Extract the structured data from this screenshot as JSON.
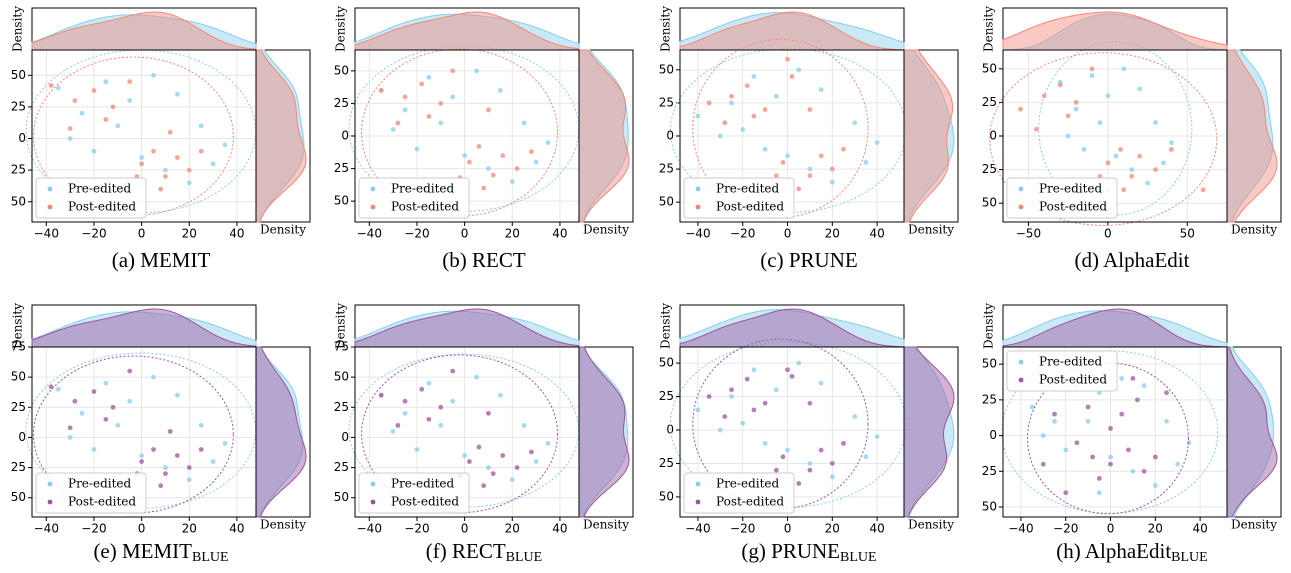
{
  "chart_data": [
    {
      "type": "scatter",
      "title": "(a) MEMIT",
      "top_ylabel": "Density",
      "right_xlabel": "Density",
      "legend": "lower left",
      "xlim": [
        -46,
        48
      ],
      "ylim": [
        -66,
        70
      ],
      "xticks": [
        {
          "value": -40,
          "label": "−40"
        },
        {
          "value": -20,
          "label": "−20"
        },
        0,
        20,
        40
      ],
      "yticks": [
        {
          "value": -50,
          "label": "50"
        },
        {
          "value": -25,
          "label": "25"
        },
        0,
        25,
        50
      ],
      "series": [
        {
          "name": "Pre-edited",
          "color": "#87ceeb",
          "x": [
            -35,
            -25,
            -15,
            -5,
            5,
            15,
            25,
            35,
            -30,
            -10,
            0,
            10,
            20,
            -5,
            30,
            -20
          ],
          "y": [
            40,
            20,
            45,
            30,
            50,
            35,
            10,
            -5,
            0,
            10,
            -15,
            -25,
            -35,
            -40,
            -20,
            -10
          ]
        },
        {
          "name": "Post-edited",
          "color": "#f4877a",
          "x": [
            -38,
            -28,
            -20,
            -12,
            -30,
            -5,
            0,
            5,
            10,
            15,
            20,
            8,
            -2,
            25,
            12,
            -15
          ],
          "y": [
            42,
            30,
            38,
            25,
            8,
            45,
            -20,
            -10,
            -30,
            -15,
            -25,
            -40,
            -30,
            -10,
            5,
            15
          ]
        }
      ]
    },
    {
      "type": "scatter",
      "title": "(b) RECT",
      "top_ylabel": "Density",
      "right_xlabel": "Density",
      "legend": "lower left",
      "xlim": [
        -46,
        48
      ],
      "ylim": [
        -66,
        66
      ],
      "xticks": [
        {
          "value": -40,
          "label": "−40"
        },
        {
          "value": -20,
          "label": "−20"
        },
        0,
        20,
        40
      ],
      "yticks": [
        {
          "value": -50,
          "label": "50"
        },
        {
          "value": -25,
          "label": "25"
        },
        0,
        25,
        50
      ],
      "series": [
        {
          "name": "Pre-edited",
          "color": "#87ceeb",
          "x": [
            -35,
            -25,
            -15,
            -5,
            5,
            15,
            25,
            35,
            -30,
            -10,
            0,
            10,
            20,
            -5,
            30,
            -20
          ],
          "y": [
            35,
            20,
            45,
            30,
            50,
            35,
            10,
            -5,
            5,
            10,
            -15,
            -25,
            -35,
            -40,
            -20,
            -10
          ]
        },
        {
          "name": "Post-edited",
          "color": "#f4877a",
          "x": [
            -35,
            -25,
            -18,
            -10,
            -28,
            -5,
            2,
            6,
            12,
            16,
            22,
            8,
            -2,
            28,
            10,
            -15
          ],
          "y": [
            35,
            30,
            40,
            25,
            10,
            50,
            -20,
            -8,
            -30,
            -15,
            -25,
            -40,
            -32,
            -12,
            20,
            15
          ]
        }
      ]
    },
    {
      "type": "scatter",
      "title": "(c) PRUNE",
      "top_ylabel": "Density",
      "right_xlabel": "Density",
      "legend": "lower left",
      "xlim": [
        -48,
        52
      ],
      "ylim": [
        -65,
        65
      ],
      "xticks": [
        {
          "value": -40,
          "label": "−40"
        },
        {
          "value": -20,
          "label": "−20"
        },
        0,
        20,
        40
      ],
      "yticks": [
        {
          "value": -50,
          "label": "50"
        },
        {
          "value": -25,
          "label": "25"
        },
        0,
        25,
        50
      ],
      "series": [
        {
          "name": "Pre-edited",
          "color": "#87ceeb",
          "x": [
            -40,
            -25,
            -15,
            -5,
            5,
            15,
            30,
            40,
            -30,
            -10,
            0,
            10,
            20,
            -5,
            35,
            -20
          ],
          "y": [
            15,
            25,
            45,
            30,
            50,
            35,
            10,
            -5,
            0,
            -10,
            -15,
            -25,
            -35,
            -40,
            -20,
            5
          ]
        },
        {
          "name": "Post-edited",
          "color": "#f4877a",
          "x": [
            -35,
            -25,
            -18,
            -10,
            -28,
            0,
            2,
            -2,
            10,
            15,
            20,
            5,
            -5,
            25,
            10,
            -15
          ],
          "y": [
            25,
            30,
            38,
            20,
            10,
            58,
            45,
            -20,
            -30,
            -15,
            -25,
            -40,
            -30,
            -10,
            20,
            15
          ]
        }
      ]
    },
    {
      "type": "scatter",
      "title": "(d) AlphaEdit",
      "top_ylabel": "Density",
      "right_xlabel": "Density",
      "legend": "lower left",
      "xlim": [
        -66,
        75
      ],
      "ylim": [
        -64,
        64
      ],
      "xticks": [
        {
          "value": -50,
          "label": "−50"
        },
        0,
        50
      ],
      "yticks": [
        {
          "value": -50,
          "label": "50"
        },
        {
          "value": -25,
          "label": "25"
        },
        0,
        25,
        50
      ],
      "series": [
        {
          "name": "Pre-edited",
          "color": "#87ceeb",
          "x": [
            -30,
            -20,
            -10,
            0,
            10,
            20,
            30,
            40,
            -25,
            -5,
            5,
            15,
            25,
            0,
            35,
            -15
          ],
          "y": [
            40,
            20,
            45,
            30,
            50,
            35,
            10,
            -5,
            0,
            10,
            -15,
            -25,
            -35,
            -40,
            -20,
            -10
          ]
        },
        {
          "name": "Post-edited",
          "color": "#f4877a",
          "x": [
            -55,
            -40,
            -30,
            -20,
            -45,
            -10,
            0,
            8,
            15,
            20,
            30,
            10,
            -5,
            40,
            60,
            -25
          ],
          "y": [
            20,
            30,
            38,
            25,
            5,
            50,
            -20,
            -10,
            -30,
            -15,
            -25,
            -40,
            -30,
            -10,
            -40,
            15
          ]
        }
      ]
    },
    {
      "type": "scatter",
      "title": "(e) MEMIT",
      "title_subscript": "BLUE",
      "top_ylabel": "Density",
      "right_xlabel": "Density",
      "legend": "lower left",
      "xlim": [
        -46,
        48
      ],
      "ylim": [
        -66,
        75
      ],
      "xticks": [
        {
          "value": -40,
          "label": "−40"
        },
        {
          "value": -20,
          "label": "−20"
        },
        0,
        20,
        40
      ],
      "yticks": [
        {
          "value": -50,
          "label": "50"
        },
        {
          "value": -25,
          "label": "25"
        },
        0,
        25,
        50,
        75
      ],
      "series": [
        {
          "name": "Pre-edited",
          "color": "#87ceeb",
          "x": [
            -35,
            -25,
            -15,
            -5,
            5,
            15,
            25,
            35,
            -30,
            -10,
            0,
            10,
            20,
            -5,
            30,
            -20
          ],
          "y": [
            40,
            20,
            45,
            30,
            50,
            35,
            10,
            -5,
            0,
            10,
            -15,
            -25,
            -35,
            -40,
            -20,
            -10
          ]
        },
        {
          "name": "Post-edited",
          "color": "#9b559e",
          "x": [
            -38,
            -28,
            -20,
            -12,
            -30,
            -5,
            0,
            5,
            10,
            15,
            20,
            8,
            -2,
            25,
            12,
            -15
          ],
          "y": [
            42,
            30,
            38,
            25,
            8,
            55,
            -20,
            -10,
            -30,
            -15,
            -25,
            -40,
            -30,
            -10,
            5,
            15
          ]
        }
      ]
    },
    {
      "type": "scatter",
      "title": "(f) RECT",
      "title_subscript": "BLUE",
      "top_ylabel": "Density",
      "right_xlabel": "Density",
      "legend": "lower left",
      "xlim": [
        -46,
        48
      ],
      "ylim": [
        -66,
        75
      ],
      "xticks": [
        {
          "value": -40,
          "label": "−40"
        },
        {
          "value": -20,
          "label": "−20"
        },
        0,
        20,
        40
      ],
      "yticks": [
        {
          "value": -50,
          "label": "50"
        },
        {
          "value": -25,
          "label": "25"
        },
        0,
        25,
        50,
        75
      ],
      "series": [
        {
          "name": "Pre-edited",
          "color": "#87ceeb",
          "x": [
            -35,
            -25,
            -15,
            -5,
            5,
            15,
            25,
            35,
            -30,
            -10,
            0,
            10,
            20,
            -5,
            30,
            -20
          ],
          "y": [
            35,
            20,
            45,
            30,
            50,
            35,
            10,
            -5,
            5,
            10,
            -15,
            -25,
            -35,
            -40,
            -20,
            -10
          ]
        },
        {
          "name": "Post-edited",
          "color": "#9b559e",
          "x": [
            -35,
            -25,
            -18,
            -10,
            -28,
            -5,
            2,
            6,
            12,
            16,
            22,
            8,
            -2,
            28,
            10,
            -15
          ],
          "y": [
            35,
            30,
            40,
            25,
            10,
            55,
            -20,
            -8,
            -30,
            -15,
            -25,
            -40,
            -32,
            -12,
            20,
            15
          ]
        }
      ]
    },
    {
      "type": "scatter",
      "title": "(g) PRUNE",
      "title_subscript": "BLUE",
      "top_ylabel": "Density",
      "right_xlabel": "Density",
      "legend": "lower left",
      "xlim": [
        -48,
        52
      ],
      "ylim": [
        -65,
        62
      ],
      "xticks": [
        {
          "value": -40,
          "label": "−40"
        },
        {
          "value": -20,
          "label": "−20"
        },
        0,
        20,
        40
      ],
      "yticks": [
        {
          "value": -50,
          "label": "50"
        },
        {
          "value": -25,
          "label": "25"
        },
        0,
        25,
        50
      ],
      "series": [
        {
          "name": "Pre-edited",
          "color": "#87ceeb",
          "x": [
            -40,
            -25,
            -15,
            -5,
            5,
            15,
            30,
            40,
            -30,
            -10,
            0,
            10,
            20,
            -5,
            35,
            -20
          ],
          "y": [
            15,
            25,
            45,
            30,
            50,
            35,
            10,
            -5,
            0,
            -10,
            -15,
            -25,
            -35,
            -40,
            -20,
            5
          ]
        },
        {
          "name": "Post-edited",
          "color": "#9b559e",
          "x": [
            -35,
            -25,
            -18,
            -10,
            -28,
            0,
            2,
            -2,
            10,
            15,
            20,
            5,
            -5,
            25,
            10,
            -15
          ],
          "y": [
            25,
            30,
            38,
            20,
            10,
            45,
            40,
            -20,
            -30,
            -15,
            -25,
            -40,
            -30,
            -10,
            20,
            15
          ]
        }
      ]
    },
    {
      "type": "scatter",
      "title": "(h) AlphaEdit",
      "title_subscript": "BLUE",
      "top_ylabel": "Density",
      "right_xlabel": "Density",
      "legend": "upper left",
      "xlim": [
        -48,
        52
      ],
      "ylim": [
        -57,
        62
      ],
      "xticks": [
        {
          "value": -40,
          "label": "−40"
        },
        {
          "value": -20,
          "label": "−20"
        },
        0,
        20,
        40
      ],
      "yticks": [
        {
          "value": -50,
          "label": "50"
        },
        {
          "value": -25,
          "label": "25"
        },
        0,
        25,
        50
      ],
      "series": [
        {
          "name": "Pre-edited",
          "color": "#87ceeb",
          "x": [
            -35,
            -25,
            -15,
            -5,
            5,
            15,
            25,
            35,
            -30,
            -10,
            0,
            10,
            20,
            -5,
            30,
            -20
          ],
          "y": [
            20,
            10,
            35,
            30,
            40,
            35,
            10,
            -5,
            0,
            10,
            -15,
            -25,
            -35,
            -40,
            -20,
            -10
          ]
        },
        {
          "name": "Post-edited",
          "color": "#9b559e",
          "x": [
            -25,
            -15,
            -8,
            0,
            8,
            15,
            25,
            -20,
            -10,
            5,
            10,
            -5,
            0,
            20,
            12,
            -30
          ],
          "y": [
            15,
            -5,
            -15,
            -20,
            -10,
            -25,
            30,
            -40,
            20,
            15,
            40,
            -30,
            5,
            -15,
            25,
            -20
          ]
        }
      ]
    }
  ]
}
